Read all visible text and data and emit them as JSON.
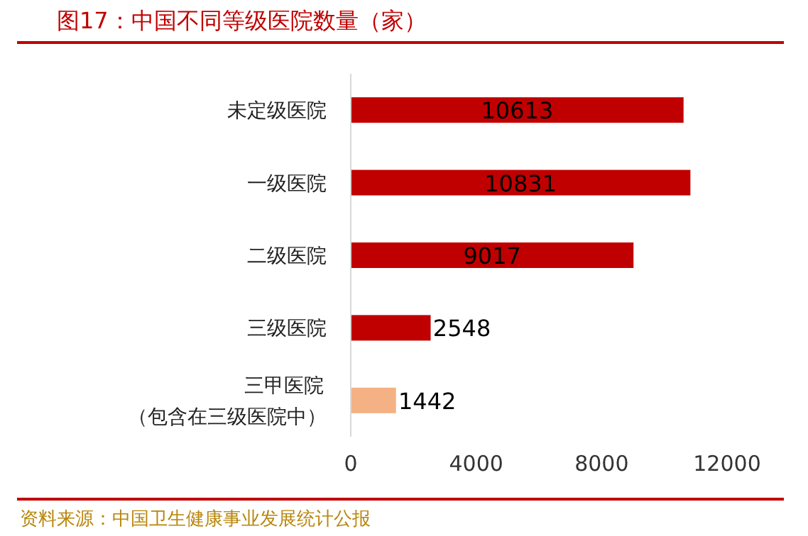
{
  "chart_data": {
    "type": "bar",
    "orientation": "horizontal",
    "title": "图17：中国不同等级医院数量（家）",
    "categories": [
      "未定级医院",
      "一级医院",
      "二级医院",
      "三级医院",
      "三甲医院（包含在三级医院中）"
    ],
    "values": [
      10613,
      10831,
      9017,
      2548,
      1442
    ],
    "colors": [
      "#c00000",
      "#c00000",
      "#c00000",
      "#c00000",
      "#f4b183"
    ],
    "xlim": [
      0,
      12000
    ],
    "xticks": [
      0,
      4000,
      8000,
      12000
    ],
    "data_labels": true,
    "grid": false,
    "annotations": [
      "资料来源：中国卫生健康事业发展统计公报"
    ]
  }
}
